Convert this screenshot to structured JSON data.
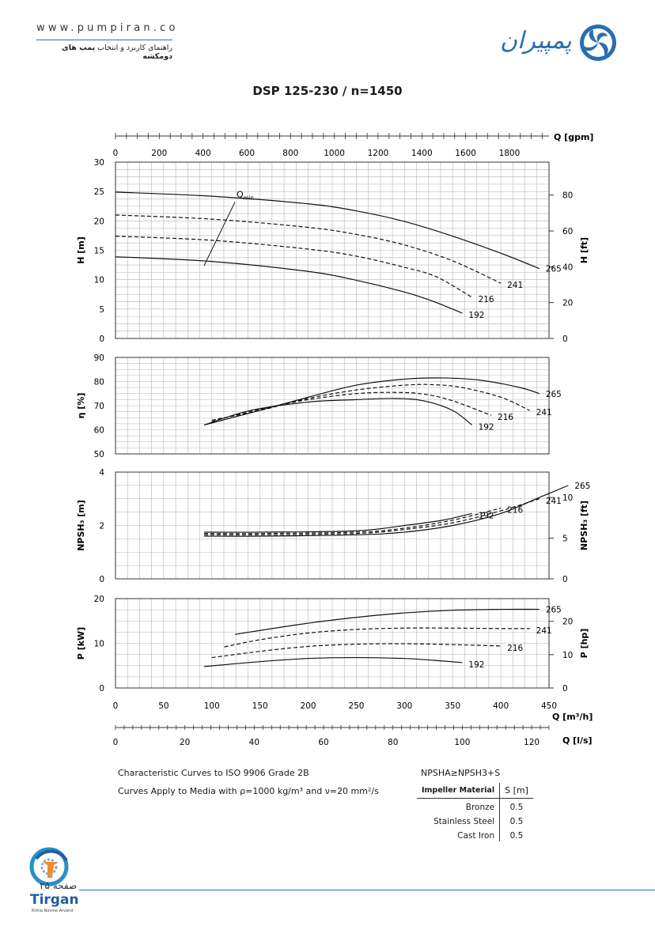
{
  "header": {
    "url": "www.pumpiran.co",
    "subtitle_pre": "راهنمای کاربرد و انتخاب ",
    "subtitle_bold": "پمپ های دومکشه",
    "logo_text": "پمپیران"
  },
  "title": "DSP 125-230 / n=1450",
  "chart_data": {
    "type": "line",
    "flow_axes": [
      {
        "label": "Q [gpm]",
        "ticks": [
          0,
          200,
          400,
          600,
          800,
          1000,
          1200,
          1400,
          1600,
          1800
        ],
        "range": [
          0,
          1981
        ]
      },
      {
        "label": "Q [m³/h]",
        "ticks": [
          0,
          50,
          100,
          150,
          200,
          250,
          300,
          350,
          400,
          450
        ],
        "range": [
          0,
          450
        ]
      },
      {
        "label": "Q [l/s]",
        "ticks": [
          0,
          20,
          40,
          60,
          80,
          100,
          120
        ],
        "range": [
          0,
          125
        ]
      }
    ],
    "x_unit": "m³/h",
    "panels": [
      {
        "name": "head",
        "ylabel": "H [m]",
        "ylim": [
          0,
          30
        ],
        "yticks": [
          0,
          5,
          10,
          15,
          20,
          25,
          30
        ],
        "y2label": "H [ft]",
        "y2ticks": [
          0,
          20,
          40,
          60,
          80
        ],
        "series": [
          {
            "name": "265",
            "dash": false,
            "points": [
              [
                0,
                24.9
              ],
              [
                100,
                24.2
              ],
              [
                200,
                22.9
              ],
              [
                250,
                21.7
              ],
              [
                300,
                19.9
              ],
              [
                350,
                17.4
              ],
              [
                400,
                14.5
              ],
              [
                440,
                11.9
              ]
            ]
          },
          {
            "name": "241",
            "dash": true,
            "points": [
              [
                0,
                21.0
              ],
              [
                100,
                20.3
              ],
              [
                200,
                18.9
              ],
              [
                250,
                17.7
              ],
              [
                300,
                15.9
              ],
              [
                350,
                13.2
              ],
              [
                400,
                9.4
              ]
            ]
          },
          {
            "name": "216",
            "dash": true,
            "points": [
              [
                0,
                17.4
              ],
              [
                100,
                16.7
              ],
              [
                200,
                15.2
              ],
              [
                250,
                14.0
              ],
              [
                300,
                12.1
              ],
              [
                333,
                10.5
              ],
              [
                370,
                7.0
              ]
            ]
          },
          {
            "name": "192",
            "dash": false,
            "points": [
              [
                0,
                13.9
              ],
              [
                100,
                13.1
              ],
              [
                200,
                11.4
              ],
              [
                250,
                9.9
              ],
              [
                300,
                7.9
              ],
              [
                330,
                6.3
              ],
              [
                360,
                4.3
              ]
            ]
          }
        ],
        "qmin": {
          "label": "Q",
          "sub": "min",
          "points": [
            [
              92,
              12.4
            ],
            [
              124,
              23.2
            ]
          ]
        }
      },
      {
        "name": "efficiency",
        "ylabel": "η [%]",
        "ylim": [
          50,
          90
        ],
        "yticks": [
          50,
          60,
          70,
          80,
          90
        ],
        "series": [
          {
            "name": "265",
            "dash": false,
            "points": [
              [
                92,
                62
              ],
              [
                140,
                67
              ],
              [
                200,
                73.5
              ],
              [
                250,
                78.5
              ],
              [
                300,
                81
              ],
              [
                340,
                81.5
              ],
              [
                380,
                80.5
              ],
              [
                420,
                77.5
              ],
              [
                440,
                75
              ]
            ]
          },
          {
            "name": "241",
            "dash": true,
            "points": [
              [
                100,
                64
              ],
              [
                150,
                68
              ],
              [
                200,
                73
              ],
              [
                250,
                76.5
              ],
              [
                300,
                78.5
              ],
              [
                330,
                78.7
              ],
              [
                360,
                77.5
              ],
              [
                400,
                73.5
              ],
              [
                430,
                68
              ]
            ]
          },
          {
            "name": "216",
            "dash": true,
            "points": [
              [
                100,
                63.5
              ],
              [
                150,
                68.5
              ],
              [
                200,
                72.5
              ],
              [
                250,
                75
              ],
              [
                290,
                75.5
              ],
              [
                320,
                74.8
              ],
              [
                350,
                72
              ],
              [
                390,
                66
              ]
            ]
          },
          {
            "name": "192",
            "dash": false,
            "points": [
              [
                92,
                62
              ],
              [
                140,
                68
              ],
              [
                200,
                71.5
              ],
              [
                250,
                72.5
              ],
              [
                290,
                73
              ],
              [
                320,
                72
              ],
              [
                350,
                68
              ],
              [
                370,
                62
              ]
            ]
          }
        ]
      },
      {
        "name": "npsh",
        "ylabel": "NPSH₃ [m]",
        "ylim": [
          0,
          4
        ],
        "yticks": [
          0,
          2,
          4
        ],
        "y2label": "NPSH₃ [ft]",
        "y2ticks": [
          0,
          5,
          10
        ],
        "series": [
          {
            "name": "265",
            "dash": false,
            "points": [
              [
                92,
                1.6
              ],
              [
                150,
                1.6
              ],
              [
                250,
                1.65
              ],
              [
                300,
                1.75
              ],
              [
                350,
                2.0
              ],
              [
                400,
                2.45
              ],
              [
                440,
                3.05
              ],
              [
                470,
                3.5
              ]
            ]
          },
          {
            "name": "241",
            "dash": true,
            "points": [
              [
                92,
                1.65
              ],
              [
                150,
                1.65
              ],
              [
                250,
                1.7
              ],
              [
                300,
                1.85
              ],
              [
                350,
                2.1
              ],
              [
                400,
                2.55
              ],
              [
                440,
                3.0
              ]
            ]
          },
          {
            "name": "216",
            "dash": true,
            "points": [
              [
                92,
                1.7
              ],
              [
                150,
                1.7
              ],
              [
                250,
                1.75
              ],
              [
                300,
                1.9
              ],
              [
                350,
                2.2
              ],
              [
                400,
                2.65
              ]
            ]
          },
          {
            "name": "192",
            "dash": false,
            "points": [
              [
                92,
                1.75
              ],
              [
                150,
                1.75
              ],
              [
                250,
                1.8
              ],
              [
                300,
                2.0
              ],
              [
                340,
                2.2
              ],
              [
                370,
                2.45
              ]
            ]
          }
        ]
      },
      {
        "name": "power",
        "ylabel": "P [kW]",
        "ylim": [
          0,
          20
        ],
        "yticks": [
          0,
          10,
          20
        ],
        "y2label": "P [hp]",
        "y2ticks": [
          0,
          10,
          20
        ],
        "series": [
          {
            "name": "265",
            "dash": false,
            "points": [
              [
                124,
                12
              ],
              [
                200,
                14.5
              ],
              [
                250,
                15.8
              ],
              [
                300,
                16.8
              ],
              [
                350,
                17.4
              ],
              [
                400,
                17.6
              ],
              [
                440,
                17.6
              ]
            ]
          },
          {
            "name": "241",
            "dash": true,
            "points": [
              [
                113,
                9.2
              ],
              [
                150,
                10.8
              ],
              [
                200,
                12.3
              ],
              [
                250,
                13.1
              ],
              [
                300,
                13.4
              ],
              [
                350,
                13.4
              ],
              [
                400,
                13.3
              ],
              [
                430,
                13.3
              ]
            ]
          },
          {
            "name": "216",
            "dash": true,
            "points": [
              [
                100,
                6.8
              ],
              [
                150,
                8.2
              ],
              [
                200,
                9.3
              ],
              [
                250,
                9.8
              ],
              [
                300,
                9.9
              ],
              [
                350,
                9.7
              ],
              [
                400,
                9.4
              ]
            ]
          },
          {
            "name": "192",
            "dash": false,
            "points": [
              [
                92,
                4.8
              ],
              [
                150,
                5.9
              ],
              [
                200,
                6.6
              ],
              [
                250,
                6.8
              ],
              [
                300,
                6.6
              ],
              [
                330,
                6.2
              ],
              [
                360,
                5.7
              ]
            ]
          }
        ]
      }
    ]
  },
  "footer": {
    "note1": "Characteristic Curves to ISO 9906 Grade 2B",
    "note2": "Curves Apply to Media with ρ=1000 kg/m³ and ν=20 mm²/s",
    "npsh_eq": "NPSHA≥NPSH3+S",
    "table": {
      "headers": [
        "Impeller Material",
        "S [m]"
      ],
      "rows": [
        [
          "Bronze",
          "0.5"
        ],
        [
          "Stainless Steel",
          "0.5"
        ],
        [
          "Cast Iron",
          "0.5"
        ]
      ]
    },
    "page_label": "صفحه ۲۵",
    "brand": "Tirgan",
    "brand_sub": "Kimia Novine Arvand"
  }
}
